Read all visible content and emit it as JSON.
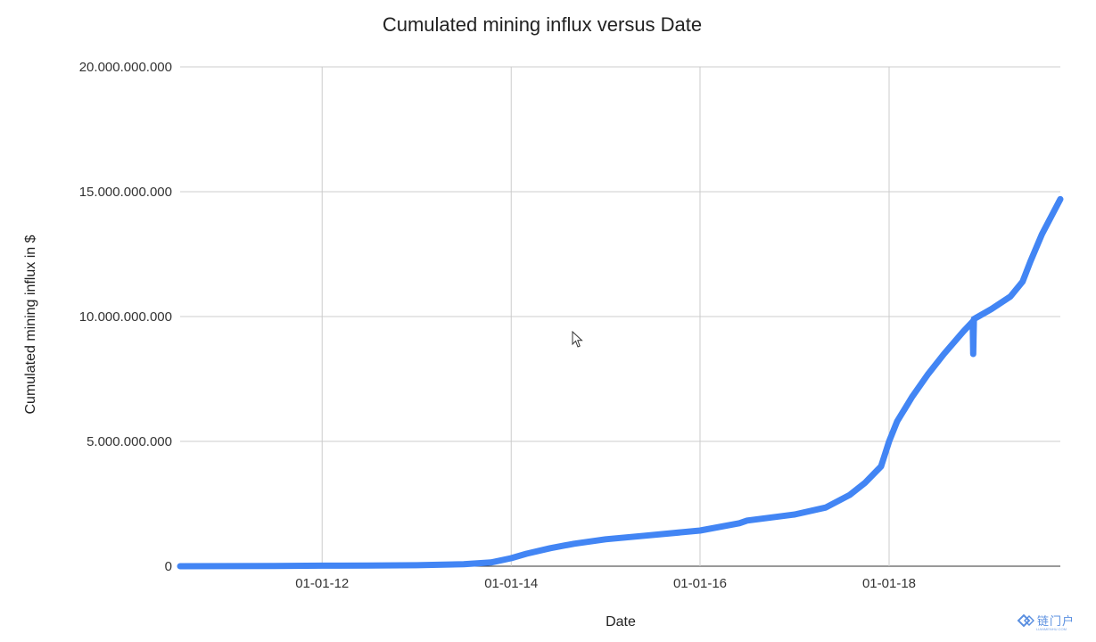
{
  "chart_data": {
    "type": "line",
    "title": "Cumulated mining influx versus Date",
    "xlabel": "Date",
    "ylabel": "Cumulated mining influx in $",
    "x_ticks": [
      "01-01-12",
      "01-01-14",
      "01-01-16",
      "01-01-18"
    ],
    "y_ticks": [
      "0",
      "5.000.000.000",
      "10.000.000.000",
      "15.000.000.000",
      "20.000.000.000"
    ],
    "ylim": [
      0,
      20000000000
    ],
    "xlim": [
      "2010-07-01",
      "2019-10-25"
    ],
    "grid": true,
    "legend": "none",
    "series": [
      {
        "color": "#4285f4",
        "points": [
          [
            "2010-07-01",
            0
          ],
          [
            "2011-01-01",
            5000000
          ],
          [
            "2011-07-01",
            10000000
          ],
          [
            "2012-01-01",
            20000000
          ],
          [
            "2012-07-01",
            25000000
          ],
          [
            "2013-01-01",
            40000000
          ],
          [
            "2013-07-01",
            80000000
          ],
          [
            "2013-10-15",
            150000000
          ],
          [
            "2014-01-01",
            320000000
          ],
          [
            "2014-03-01",
            500000000
          ],
          [
            "2014-06-01",
            720000000
          ],
          [
            "2014-09-01",
            900000000
          ],
          [
            "2015-01-01",
            1080000000
          ],
          [
            "2015-06-01",
            1220000000
          ],
          [
            "2016-01-01",
            1430000000
          ],
          [
            "2016-06-01",
            1720000000
          ],
          [
            "2016-07-01",
            1830000000
          ],
          [
            "2017-01-01",
            2070000000
          ],
          [
            "2017-05-01",
            2350000000
          ],
          [
            "2017-08-01",
            2850000000
          ],
          [
            "2017-10-01",
            3350000000
          ],
          [
            "2017-12-01",
            4000000000
          ],
          [
            "2018-01-01",
            5000000000
          ],
          [
            "2018-02-01",
            5800000000
          ],
          [
            "2018-04-01",
            6800000000
          ],
          [
            "2018-06-01",
            7700000000
          ],
          [
            "2018-08-01",
            8500000000
          ],
          [
            "2018-10-15",
            9400000000
          ],
          [
            "2018-11-20",
            9800000000
          ],
          [
            "2018-11-22",
            8500000000
          ],
          [
            "2018-11-25",
            9900000000
          ],
          [
            "2019-02-01",
            10300000000
          ],
          [
            "2019-04-15",
            10800000000
          ],
          [
            "2019-06-01",
            11400000000
          ],
          [
            "2019-07-01",
            12200000000
          ],
          [
            "2019-08-15",
            13300000000
          ],
          [
            "2019-10-25",
            14700000000
          ]
        ]
      }
    ]
  },
  "watermark": {
    "text": "链门户",
    "subtext": "LIANMENHU.COM"
  }
}
